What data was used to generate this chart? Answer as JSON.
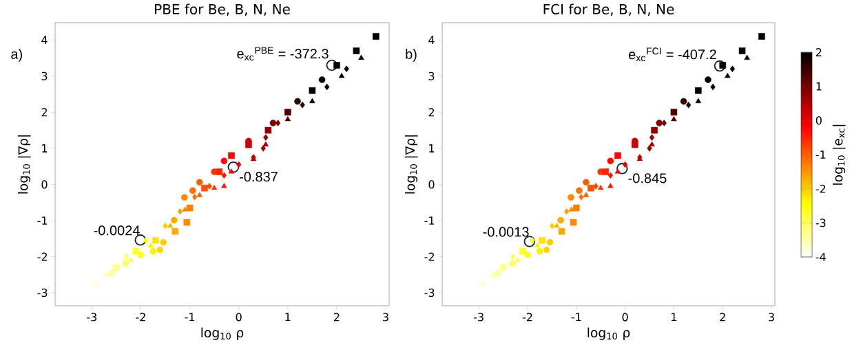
{
  "chart_data": [
    {
      "type": "scatter",
      "title": "PBE for Be, B, N, Ne",
      "xlabel": "log$_{10}$ ρ",
      "ylabel": "log$_{10}$ |∇ρ|",
      "xlim": [
        -3.75,
        3.07
      ],
      "ylim": [
        -3.36,
        4.48
      ],
      "xticks": [
        -3,
        -2,
        -1,
        0,
        1,
        2,
        3
      ],
      "yticks": [
        -3,
        -2,
        -1,
        0,
        1,
        2,
        3,
        4
      ],
      "annotations": [
        "a)",
        {
          "text": "-0.0024",
          "x": -2.01,
          "y": -1.54
        },
        {
          "text": "-0.837",
          "x": -0.11,
          "y": 0.48
        },
        {
          "text": "e$_{xc}$$^{PBE}$ = -372.3",
          "x": 1.9,
          "y": 3.3
        }
      ],
      "series": [
        {
          "marker": "circle",
          "x": [
            -2.92,
            -2.6,
            -2.31,
            -2.0,
            -1.75,
            -1.61,
            -1.54,
            -1.32,
            -1.11,
            -0.94,
            -0.8,
            -0.5,
            -0.3,
            0.2,
            0.7,
            1.2,
            1.7
          ],
          "values": [
            -2.76,
            -2.45,
            -2.19,
            -1.95,
            -1.85,
            -1.81,
            -1.6,
            -0.99,
            -0.36,
            -0.17,
            0.06,
            0.35,
            0.65,
            1.2,
            1.7,
            2.3,
            2.9
          ],
          "colors": [
            "#ffffde",
            "#ffff9d",
            "#ffff5b",
            "#ffff1a",
            "#ffef00",
            "#ffd800",
            "#ffcd00",
            "#ffab00",
            "#ff8900",
            "#ff7200",
            "#ff5c00",
            "#ff3400",
            "#ff0800",
            "#cb0000",
            "#800000",
            "#2f0000",
            "#000000"
          ]
        },
        {
          "marker": "square",
          "x": [
            -2.5,
            -2.1,
            -1.7,
            -1.3,
            -1.06,
            -1.0,
            -0.7,
            -0.4,
            -0.15,
            0.2,
            0.6,
            1.0,
            1.5,
            2.0,
            2.4,
            2.8
          ],
          "values": [
            -2.3,
            -1.85,
            -1.55,
            -1.3,
            -1.05,
            -0.65,
            -0.1,
            0.35,
            0.8,
            1.1,
            1.5,
            2.0,
            2.6,
            3.3,
            3.7,
            4.1
          ],
          "colors": [
            "#ffff8c",
            "#ffff2b",
            "#ffe400",
            "#ffab00",
            "#ff8900",
            "#ff7e00",
            "#ff5000",
            "#ff2300",
            "#ff0100",
            "#cb0000",
            "#8c0000",
            "#510000",
            "#060000",
            "#000000",
            "#000000",
            "#000000"
          ]
        },
        {
          "marker": "triangle",
          "x": [
            -2.2,
            -1.8,
            -1.4,
            -1.1,
            -0.8,
            -0.5,
            -0.3,
            -0.15,
            0.3,
            0.55,
            1.0,
            1.5,
            2.1,
            2.5
          ],
          "values": [
            -2.1,
            -1.7,
            -1.15,
            -0.7,
            -0.3,
            -0.1,
            -0.05,
            0.35,
            0.7,
            1.1,
            1.8,
            2.3,
            3.0,
            3.5
          ],
          "colors": [
            "#ffff4b",
            "#ffef00",
            "#ffb600",
            "#ff8900",
            "#ff5c00",
            "#ff3400",
            "#ff1800",
            "#ff0100",
            "#ba0000",
            "#970000",
            "#510000",
            "#060000",
            "#000000",
            "#000000"
          ]
        },
        {
          "marker": "diamond",
          "x": [
            -2.7,
            -2.3,
            -1.9,
            -1.5,
            -1.2,
            -0.9,
            -0.6,
            -0.3,
            0.0,
            0.3,
            0.5,
            0.55,
            0.8,
            1.3,
            1.8,
            2.2
          ],
          "values": [
            -2.5,
            -2.0,
            -1.55,
            -1.15,
            -0.75,
            -0.35,
            -0.05,
            0.25,
            0.55,
            0.75,
            1.0,
            1.3,
            1.7,
            2.2,
            2.7,
            3.2
          ],
          "colors": [
            "#ffffad",
            "#ffff5b",
            "#ffff0a",
            "#ffcd00",
            "#ffa000",
            "#ff7200",
            "#ff4500",
            "#ff1800",
            "#e90000",
            "#ba0000",
            "#9d0000",
            "#970000",
            "#740000",
            "#230000",
            "#000000",
            "#000000"
          ]
        }
      ]
    },
    {
      "type": "scatter",
      "title": "FCI for Be, B, N, Ne",
      "xlabel": "log$_{10}$ ρ",
      "ylabel": "log$_{10}$ |∇ρ|",
      "xlim": [
        -3.75,
        3.07
      ],
      "ylim": [
        -3.36,
        4.48
      ],
      "xticks": [
        -3,
        -2,
        -1,
        0,
        1,
        2,
        3
      ],
      "yticks": [
        -3,
        -2,
        -1,
        0,
        1,
        2,
        3,
        4
      ],
      "clim": [
        -4,
        2
      ],
      "cticks": [
        -4,
        -3,
        -2,
        -1,
        0,
        1,
        2
      ],
      "clabel": "log$_{10}$ |e$_{xc}$|",
      "annotations": [
        "b)",
        {
          "text": "-0.0013",
          "x": -1.96,
          "y": -1.58
        },
        {
          "text": "-0.845",
          "x": -0.06,
          "y": 0.44
        },
        {
          "text": "e$_{xc}$$^{FCI}$ = -407.2",
          "x": 1.94,
          "y": 3.28
        }
      ],
      "series": [
        {
          "marker": "circle",
          "x": [
            -2.92,
            -2.6,
            -2.31,
            -2.0,
            -1.75,
            -1.61,
            -1.54,
            -1.32,
            -1.11,
            -0.94,
            -0.8,
            -0.5,
            -0.3,
            0.2,
            0.7,
            1.2,
            1.7
          ],
          "values": [
            -2.76,
            -2.45,
            -2.19,
            -1.95,
            -1.85,
            -1.81,
            -1.6,
            -0.99,
            -0.36,
            -0.17,
            0.06,
            0.35,
            0.65,
            1.2,
            1.7,
            2.3,
            2.9
          ],
          "colors": [
            "#ffffde",
            "#ffff9d",
            "#ffff5b",
            "#ffff1a",
            "#ffef00",
            "#ffd800",
            "#ffcd00",
            "#ffab00",
            "#ff8900",
            "#ff7200",
            "#ff5c00",
            "#ff3400",
            "#ff0800",
            "#cb0000",
            "#800000",
            "#2f0000",
            "#000000"
          ]
        },
        {
          "marker": "square",
          "x": [
            -2.5,
            -2.1,
            -1.7,
            -1.3,
            -1.06,
            -1.0,
            -0.7,
            -0.4,
            -0.15,
            0.2,
            0.6,
            1.0,
            1.5,
            2.0,
            2.4,
            2.8
          ],
          "values": [
            -2.3,
            -1.85,
            -1.55,
            -1.3,
            -1.05,
            -0.65,
            -0.1,
            0.35,
            0.8,
            1.1,
            1.5,
            2.0,
            2.6,
            3.3,
            3.7,
            4.1
          ],
          "colors": [
            "#ffff8c",
            "#ffff2b",
            "#ffe400",
            "#ffab00",
            "#ff8900",
            "#ff7e00",
            "#ff5000",
            "#ff2300",
            "#ff0100",
            "#cb0000",
            "#8c0000",
            "#510000",
            "#060000",
            "#000000",
            "#000000",
            "#000000"
          ]
        },
        {
          "marker": "triangle",
          "x": [
            -2.2,
            -1.8,
            -1.4,
            -1.1,
            -0.8,
            -0.5,
            -0.3,
            -0.15,
            0.3,
            0.55,
            1.0,
            1.5,
            2.1,
            2.5
          ],
          "values": [
            -2.1,
            -1.7,
            -1.15,
            -0.7,
            -0.3,
            -0.1,
            -0.05,
            0.35,
            0.7,
            1.1,
            1.8,
            2.3,
            3.0,
            3.5
          ],
          "colors": [
            "#ffff4b",
            "#ffef00",
            "#ffb600",
            "#ff8900",
            "#ff5c00",
            "#ff3400",
            "#ff1800",
            "#ff0100",
            "#ba0000",
            "#970000",
            "#510000",
            "#060000",
            "#000000",
            "#000000"
          ]
        },
        {
          "marker": "diamond",
          "x": [
            -2.7,
            -2.3,
            -1.9,
            -1.5,
            -1.2,
            -0.9,
            -0.6,
            -0.3,
            0.0,
            0.3,
            0.5,
            0.55,
            0.8,
            1.3,
            1.8,
            2.2
          ],
          "values": [
            -2.5,
            -2.0,
            -1.55,
            -1.15,
            -0.75,
            -0.35,
            -0.05,
            0.25,
            0.55,
            0.75,
            1.0,
            1.3,
            1.7,
            2.2,
            2.7,
            3.2
          ],
          "colors": [
            "#ffffad",
            "#ffff5b",
            "#ffff0a",
            "#ffcd00",
            "#ffa000",
            "#ff7200",
            "#ff4500",
            "#ff1800",
            "#e90000",
            "#ba0000",
            "#9d0000",
            "#970000",
            "#740000",
            "#230000",
            "#000000",
            "#000000"
          ]
        }
      ]
    }
  ]
}
